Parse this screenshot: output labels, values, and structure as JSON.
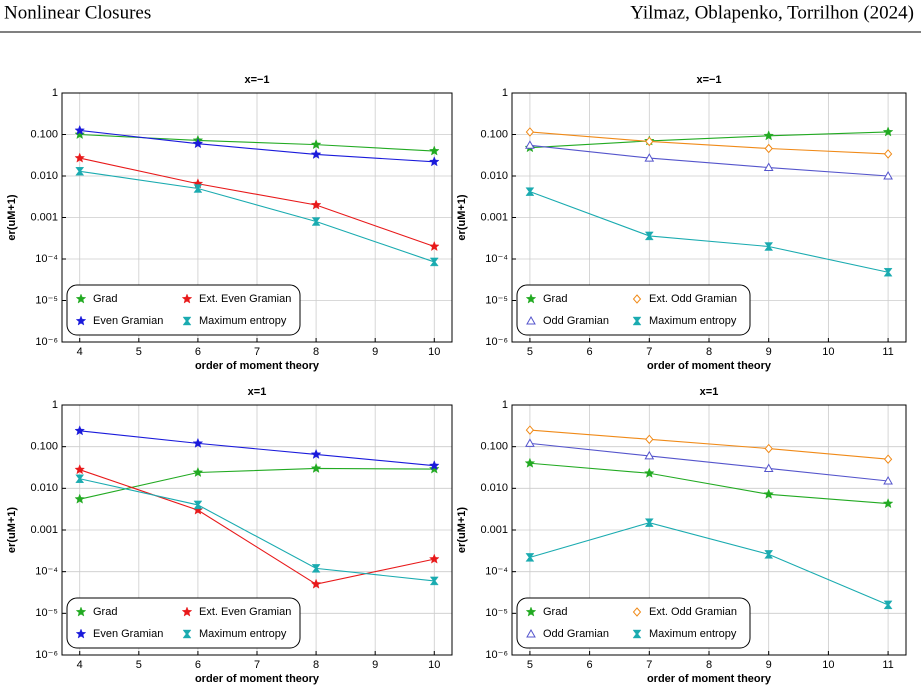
{
  "header": {
    "left": "Nonlinear Closures",
    "right": "Yilmaz, Oblapenko, Torrilhon (2024)"
  },
  "chart_data": [
    {
      "type": "line",
      "title": "x=−1",
      "xlabel": "order of moment theory",
      "ylabel": "er(uM+1)",
      "x": [
        4,
        6,
        8,
        10
      ],
      "xlim": [
        3.7,
        10.3
      ],
      "xticks": [
        4,
        5,
        6,
        7,
        8,
        9,
        10
      ],
      "ylim": [
        1e-06,
        1
      ],
      "log_y": true,
      "grid": true,
      "legend": "lower left",
      "yticks": [
        {
          "value": 1e-06,
          "label": "10⁻⁶"
        },
        {
          "value": 1e-05,
          "label": "10⁻⁵"
        },
        {
          "value": 0.0001,
          "label": "10⁻⁴"
        },
        {
          "value": 0.001,
          "label": "0.001"
        },
        {
          "value": 0.01,
          "label": "0.010"
        },
        {
          "value": 0.1,
          "label": "0.100"
        },
        1
      ],
      "series": [
        {
          "name": "Grad",
          "color": "#22aa22",
          "marker": "star",
          "values": [
            0.1,
            0.072,
            0.057,
            0.04
          ]
        },
        {
          "name": "Even Gramian",
          "color": "#1a1adb",
          "marker": "star",
          "values": [
            0.125,
            0.06,
            0.033,
            0.022
          ]
        },
        {
          "name": "Ext. Even Gramian",
          "color": "#e8191a",
          "marker": "star",
          "values": [
            0.027,
            0.0065,
            0.002,
            0.0002
          ]
        },
        {
          "name": "Maximum entropy",
          "color": "#1aabb0",
          "marker": "cross",
          "values": [
            0.013,
            0.005,
            0.0008,
            8.5e-05
          ]
        }
      ]
    },
    {
      "type": "line",
      "title": "x=−1",
      "xlabel": "order of moment theory",
      "ylabel": "er(uM+1)",
      "x": [
        5,
        7,
        9,
        11
      ],
      "xlim": [
        4.7,
        11.3
      ],
      "xticks": [
        5,
        6,
        7,
        8,
        9,
        10,
        11
      ],
      "ylim": [
        1e-06,
        1
      ],
      "log_y": true,
      "grid": true,
      "legend": "lower left",
      "yticks": [
        {
          "value": 1e-06,
          "label": "10⁻⁶"
        },
        {
          "value": 1e-05,
          "label": "10⁻⁵"
        },
        {
          "value": 0.0001,
          "label": "10⁻⁴"
        },
        {
          "value": 0.001,
          "label": "0.001"
        },
        {
          "value": 0.01,
          "label": "0.010"
        },
        {
          "value": 0.1,
          "label": "0.100"
        },
        1
      ],
      "series": [
        {
          "name": "Grad",
          "color": "#22aa22",
          "marker": "star",
          "values": [
            0.048,
            0.07,
            0.093,
            0.115
          ]
        },
        {
          "name": "Odd Gramian",
          "color": "#5555cc",
          "marker": "triangle",
          "values": [
            0.055,
            0.027,
            0.016,
            0.01
          ]
        },
        {
          "name": "Ext. Odd Gramian",
          "color": "#f08a18",
          "marker": "diamond",
          "values": [
            0.115,
            0.068,
            0.046,
            0.034
          ]
        },
        {
          "name": "Maximum entropy",
          "color": "#1aabb0",
          "marker": "cross",
          "values": [
            0.0042,
            0.00036,
            0.0002,
            4.8e-05
          ]
        }
      ]
    },
    {
      "type": "line",
      "title": "x=1",
      "xlabel": "order of moment theory",
      "ylabel": "er(uM+1)",
      "x": [
        4,
        6,
        8,
        10
      ],
      "xlim": [
        3.7,
        10.3
      ],
      "xticks": [
        4,
        5,
        6,
        7,
        8,
        9,
        10
      ],
      "ylim": [
        1e-06,
        1
      ],
      "log_y": true,
      "grid": true,
      "legend": "lower left",
      "yticks": [
        {
          "value": 1e-06,
          "label": "10⁻⁶"
        },
        {
          "value": 1e-05,
          "label": "10⁻⁵"
        },
        {
          "value": 0.0001,
          "label": "10⁻⁴"
        },
        {
          "value": 0.001,
          "label": "0.001"
        },
        {
          "value": 0.01,
          "label": "0.010"
        },
        {
          "value": 0.1,
          "label": "0.100"
        },
        1
      ],
      "series": [
        {
          "name": "Grad",
          "color": "#22aa22",
          "marker": "star",
          "values": [
            0.0055,
            0.024,
            0.03,
            0.029
          ]
        },
        {
          "name": "Even Gramian",
          "color": "#1a1adb",
          "marker": "star",
          "values": [
            0.24,
            0.12,
            0.065,
            0.035
          ]
        },
        {
          "name": "Ext. Even Gramian",
          "color": "#e8191a",
          "marker": "star",
          "values": [
            0.028,
            0.003,
            5e-05,
            0.0002
          ]
        },
        {
          "name": "Maximum entropy",
          "color": "#1aabb0",
          "marker": "cross",
          "values": [
            0.017,
            0.004,
            0.00012,
            6e-05
          ]
        }
      ]
    },
    {
      "type": "line",
      "title": "x=1",
      "xlabel": "order of moment theory",
      "ylabel": "er(uM+1)",
      "x": [
        5,
        7,
        9,
        11
      ],
      "xlim": [
        4.7,
        11.3
      ],
      "xticks": [
        5,
        6,
        7,
        8,
        9,
        10,
        11
      ],
      "ylim": [
        1e-06,
        1
      ],
      "log_y": true,
      "grid": true,
      "legend": "lower left",
      "yticks": [
        {
          "value": 1e-06,
          "label": "10⁻⁶"
        },
        {
          "value": 1e-05,
          "label": "10⁻⁵"
        },
        {
          "value": 0.0001,
          "label": "10⁻⁴"
        },
        {
          "value": 0.001,
          "label": "0.001"
        },
        {
          "value": 0.01,
          "label": "0.010"
        },
        {
          "value": 0.1,
          "label": "0.100"
        },
        1
      ],
      "series": [
        {
          "name": "Grad",
          "color": "#22aa22",
          "marker": "star",
          "values": [
            0.04,
            0.023,
            0.0072,
            0.0043
          ]
        },
        {
          "name": "Odd Gramian",
          "color": "#5555cc",
          "marker": "triangle",
          "values": [
            0.12,
            0.06,
            0.03,
            0.015
          ]
        },
        {
          "name": "Ext. Odd Gramian",
          "color": "#f08a18",
          "marker": "diamond",
          "values": [
            0.25,
            0.15,
            0.09,
            0.05
          ]
        },
        {
          "name": "Maximum entropy",
          "color": "#1aabb0",
          "marker": "cross",
          "values": [
            0.00022,
            0.0015,
            0.00026,
            1.6e-05
          ]
        }
      ]
    }
  ]
}
